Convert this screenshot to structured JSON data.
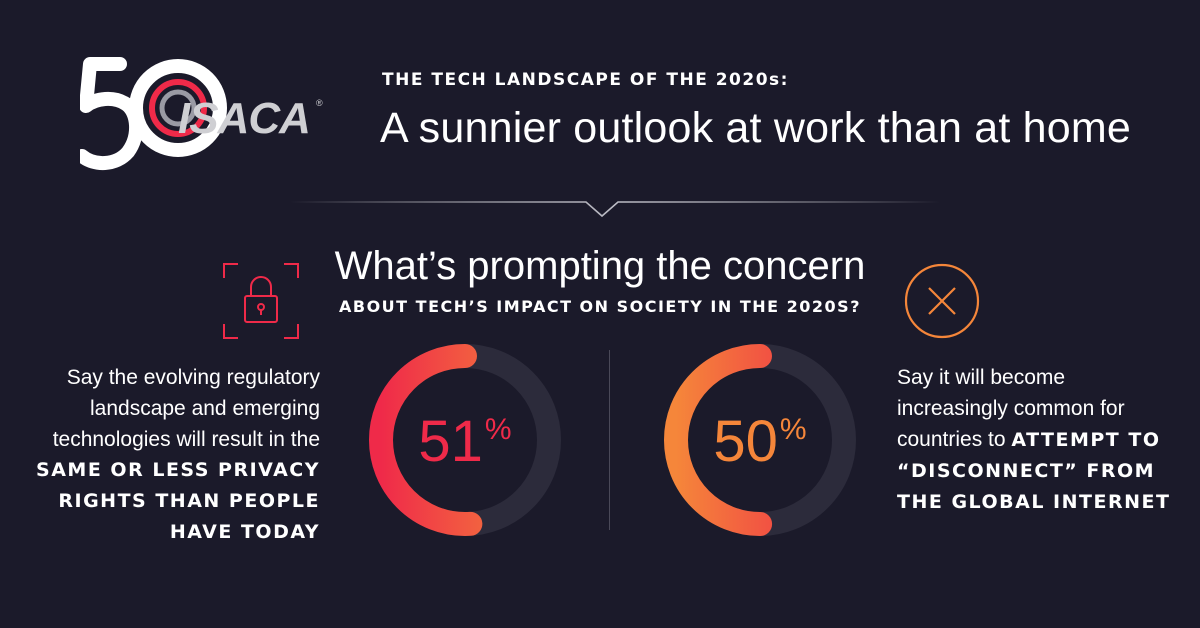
{
  "logo": {
    "mark": "50",
    "wordmark": "ISACA",
    "registered": "®"
  },
  "header": {
    "kicker": "THE TECH LANDSCAPE OF THE 2020s:",
    "headline": "A sunnier outlook at work than at home"
  },
  "question": {
    "title": "What’s prompting the concern",
    "subtitle": "ABOUT TECH’S IMPACT ON SOCIETY IN THE 2020S?"
  },
  "left": {
    "icon": "lock-icon",
    "line1": "Say the evolving regulatory",
    "line2": "landscape and emerging",
    "line3": "technologies will result in the",
    "bold1": "SAME OR LESS PRIVACY",
    "bold2": "RIGHTS THAN PEOPLE",
    "bold3": "HAVE TODAY",
    "percent_value": 51,
    "percent_label": "51",
    "percent_sign": "%"
  },
  "right": {
    "icon": "x-circle-icon",
    "line1": "Say it will become",
    "line2": "increasingly common for",
    "line3a": "countries to ",
    "bold1": "ATTEMPT TO",
    "bold2": "“DISCONNECT” FROM",
    "bold3": "THE GLOBAL INTERNET",
    "percent_value": 50,
    "percent_label": "50",
    "percent_sign": "%"
  },
  "colors": {
    "background": "#1b1a2a",
    "red": "#ef2a49",
    "orange": "#f5863a",
    "track": "#2c2b3b"
  }
}
